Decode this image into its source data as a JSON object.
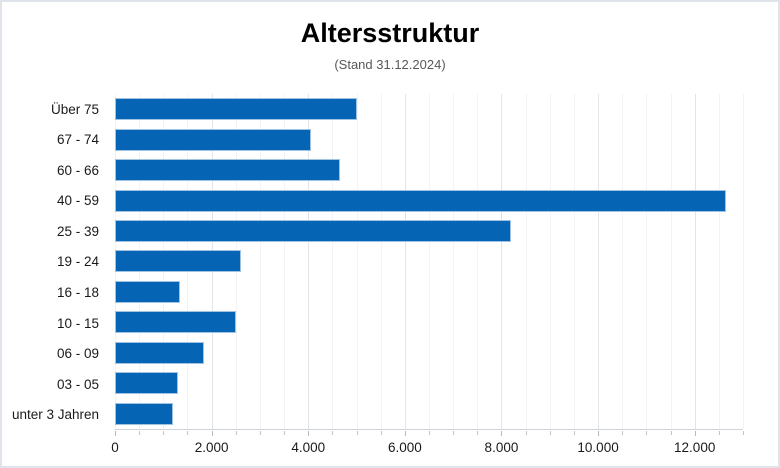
{
  "chart": {
    "title": "Altersstruktur",
    "subtitle": "(Stand 31.12.2024)"
  },
  "chart_data": {
    "type": "bar",
    "orientation": "horizontal",
    "title": "Altersstruktur",
    "subtitle": "(Stand 31.12.2024)",
    "categories": [
      "Über 75",
      "67 - 74",
      "60 - 66",
      "40 - 59",
      "25 - 39",
      "19 - 24",
      "16 - 18",
      "10 - 15",
      "06 - 09",
      "03 - 05",
      "unter 3 Jahren"
    ],
    "values": [
      5000,
      4050,
      4650,
      12650,
      8200,
      2600,
      1350,
      2500,
      1850,
      1300,
      1200
    ],
    "xlabel": "",
    "ylabel": "",
    "xlim": [
      0,
      13000
    ],
    "x_major_ticks": [
      0,
      2000,
      4000,
      6000,
      8000,
      10000,
      12000
    ],
    "x_major_tick_labels": [
      "0",
      "2.000",
      "4.000",
      "6.000",
      "8.000",
      "10.000",
      "12.000"
    ],
    "x_minor_step": 500,
    "grid": "vertical; minor lines every 500, major lines every 2000",
    "legend": "none"
  },
  "colors": {
    "bar_fill": "#0565b4",
    "bar_border": "#9fc3e3",
    "gridline_major": "#e3e3ea",
    "gridline_minor": "#f3f3f6",
    "axis_line": "#cfd3da",
    "title_text": "#000000",
    "subtitle_text": "#595959",
    "label_text": "#1a1a1a",
    "frame_border": "#dfe3ea"
  }
}
